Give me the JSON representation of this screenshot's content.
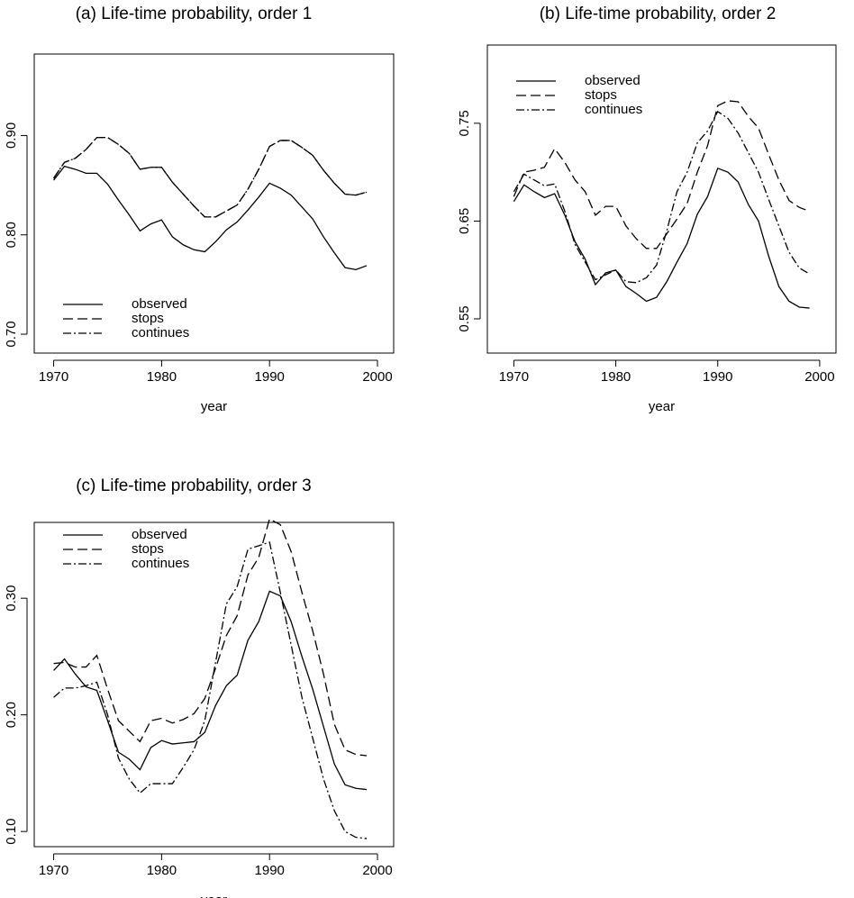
{
  "chart_data": [
    {
      "type": "line",
      "title": "(a) Life-time probability, order 1",
      "xlabel": "year",
      "x": [
        1970,
        1971,
        1972,
        1973,
        1974,
        1975,
        1976,
        1977,
        1978,
        1979,
        1980,
        1981,
        1982,
        1983,
        1984,
        1985,
        1986,
        1987,
        1988,
        1989,
        1990,
        1991,
        1992,
        1993,
        1994,
        1995,
        1996,
        1997,
        1998,
        1999
      ],
      "xlim": [
        1968.2,
        2001.5
      ],
      "xticks": [
        1970,
        1980,
        1990,
        2000
      ],
      "ylim": [
        0.681,
        0.982
      ],
      "yticks": [
        {
          "value": 0.7,
          "label": "0.70"
        },
        {
          "value": 0.8,
          "label": "0.80"
        },
        {
          "value": 0.9,
          "label": "0.90"
        }
      ],
      "legend": "lower left",
      "series": [
        {
          "name": "observed",
          "color": "#000000",
          "linestyle": "solid",
          "values": [
            0.855,
            0.869,
            0.866,
            0.862,
            0.862,
            0.851,
            0.835,
            0.82,
            0.804,
            0.811,
            0.815,
            0.798,
            0.79,
            0.785,
            0.783,
            0.793,
            0.805,
            0.813,
            0.825,
            0.838,
            0.852,
            0.847,
            0.84,
            0.828,
            0.816,
            0.798,
            0.782,
            0.767,
            0.765,
            0.769
          ]
        },
        {
          "name": "stops",
          "color": "#000000",
          "linestyle": "dashed",
          "values": [
            0.857,
            0.873,
            0.877,
            0.886,
            0.898,
            0.898,
            0.891,
            0.882,
            0.866,
            0.868,
            0.868,
            0.853,
            0.841,
            0.829,
            0.818,
            0.818,
            0.824,
            0.83,
            0.846,
            0.866,
            0.889,
            0.895,
            0.895,
            0.888,
            0.88,
            0.865,
            0.852,
            0.841,
            0.84,
            0.843
          ]
        },
        {
          "name": "continues",
          "color": "#000000",
          "linestyle": "dashdot",
          "values": [
            0.857,
            0.873,
            0.877,
            0.886,
            0.898,
            0.898,
            0.891,
            0.882,
            0.866,
            0.868,
            0.868,
            0.853,
            0.841,
            0.829,
            0.818,
            0.818,
            0.824,
            0.83,
            0.846,
            0.866,
            0.889,
            0.895,
            0.895,
            0.888,
            0.88,
            0.865,
            0.852,
            0.841,
            0.84,
            0.843
          ]
        }
      ]
    },
    {
      "type": "line",
      "title": "(b) Life-time probability, order 2",
      "xlabel": "year",
      "x": [
        1970,
        1971,
        1972,
        1973,
        1974,
        1975,
        1976,
        1977,
        1978,
        1979,
        1980,
        1981,
        1982,
        1983,
        1984,
        1985,
        1986,
        1987,
        1988,
        1989,
        1990,
        1991,
        1992,
        1993,
        1994,
        1995,
        1996,
        1997,
        1998,
        1999
      ],
      "xlim": [
        1967.4,
        2001.6
      ],
      "xticks": [
        1970,
        1980,
        1990,
        2000
      ],
      "ylim": [
        0.515,
        0.83
      ],
      "yticks": [
        0.55,
        0.65,
        0.75
      ],
      "legend": "upper left",
      "series": [
        {
          "name": "observed",
          "color": "#000000",
          "linestyle": "solid",
          "values": [
            0.67,
            0.687,
            0.68,
            0.674,
            0.678,
            0.656,
            0.629,
            0.611,
            0.585,
            0.597,
            0.6,
            0.583,
            0.576,
            0.568,
            0.572,
            0.588,
            0.608,
            0.627,
            0.657,
            0.675,
            0.704,
            0.7,
            0.69,
            0.667,
            0.65,
            0.614,
            0.583,
            0.568,
            0.562,
            0.561
          ]
        },
        {
          "name": "stops",
          "color": "#000000",
          "linestyle": "dashed",
          "values": [
            0.675,
            0.7,
            0.702,
            0.705,
            0.724,
            0.71,
            0.692,
            0.68,
            0.656,
            0.665,
            0.665,
            0.645,
            0.632,
            0.622,
            0.622,
            0.637,
            0.652,
            0.668,
            0.7,
            0.727,
            0.768,
            0.773,
            0.772,
            0.757,
            0.745,
            0.718,
            0.692,
            0.671,
            0.664,
            0.66
          ]
        },
        {
          "name": "continues",
          "color": "#000000",
          "linestyle": "dashdot",
          "values": [
            0.68,
            0.698,
            0.692,
            0.686,
            0.688,
            0.66,
            0.626,
            0.608,
            0.59,
            0.595,
            0.6,
            0.588,
            0.587,
            0.592,
            0.605,
            0.64,
            0.68,
            0.7,
            0.73,
            0.742,
            0.762,
            0.755,
            0.74,
            0.72,
            0.7,
            0.672,
            0.645,
            0.618,
            0.602,
            0.596
          ]
        }
      ]
    },
    {
      "type": "line",
      "title": "(c) Life-time probability, order 3",
      "xlabel": "year",
      "x": [
        1970,
        1971,
        1972,
        1973,
        1974,
        1975,
        1976,
        1977,
        1978,
        1979,
        1980,
        1981,
        1982,
        1983,
        1984,
        1985,
        1986,
        1987,
        1988,
        1989,
        1990,
        1991,
        1992,
        1993,
        1994,
        1995,
        1996,
        1997,
        1998,
        1999
      ],
      "xlim": [
        1968.2,
        2001.5
      ],
      "xticks": [
        1970,
        1980,
        1990,
        2000
      ],
      "ylim": [
        0.087,
        0.365
      ],
      "yticks": [
        {
          "value": 0.1,
          "label": "0.10"
        },
        {
          "value": 0.2,
          "label": "0.20"
        },
        {
          "value": 0.3,
          "label": "0.30"
        }
      ],
      "legend": "upper left",
      "series": [
        {
          "name": "observed",
          "color": "#000000",
          "linestyle": "solid",
          "values": [
            0.238,
            0.248,
            0.235,
            0.224,
            0.221,
            0.195,
            0.168,
            0.162,
            0.153,
            0.172,
            0.178,
            0.175,
            0.176,
            0.177,
            0.185,
            0.208,
            0.225,
            0.234,
            0.264,
            0.28,
            0.306,
            0.302,
            0.28,
            0.25,
            0.222,
            0.19,
            0.158,
            0.14,
            0.137,
            0.136
          ]
        },
        {
          "name": "stops",
          "color": "#000000",
          "linestyle": "dashed",
          "values": [
            0.244,
            0.245,
            0.241,
            0.241,
            0.251,
            0.222,
            0.195,
            0.186,
            0.177,
            0.195,
            0.197,
            0.193,
            0.196,
            0.201,
            0.214,
            0.24,
            0.268,
            0.285,
            0.32,
            0.335,
            0.368,
            0.363,
            0.34,
            0.305,
            0.272,
            0.235,
            0.192,
            0.17,
            0.166,
            0.165
          ]
        },
        {
          "name": "continues",
          "color": "#000000",
          "linestyle": "dashdot",
          "values": [
            0.215,
            0.223,
            0.223,
            0.225,
            0.228,
            0.2,
            0.163,
            0.145,
            0.133,
            0.141,
            0.141,
            0.141,
            0.155,
            0.17,
            0.195,
            0.245,
            0.295,
            0.31,
            0.342,
            0.345,
            0.348,
            0.305,
            0.26,
            0.215,
            0.18,
            0.145,
            0.118,
            0.1,
            0.095,
            0.094
          ]
        }
      ]
    }
  ]
}
